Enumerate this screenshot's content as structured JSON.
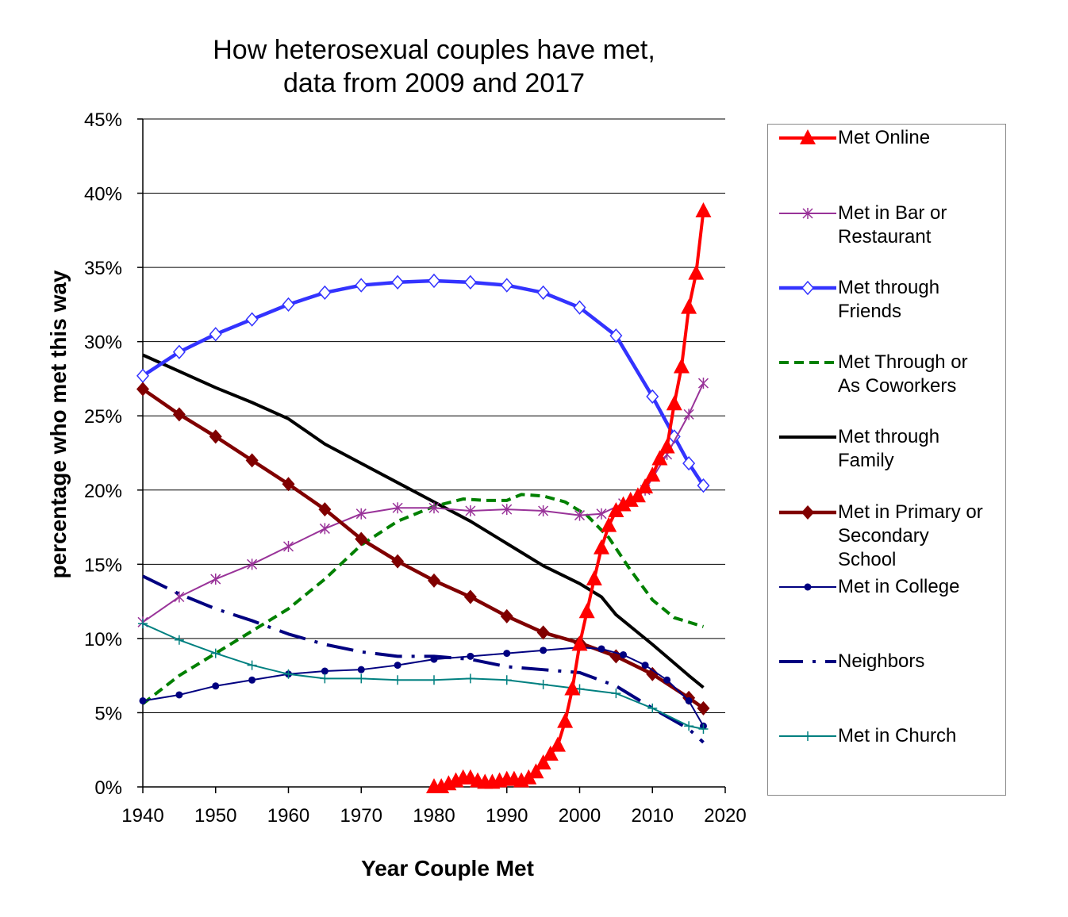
{
  "chart_data": {
    "type": "line",
    "title": [
      "How heterosexual couples have met,",
      "data from 2009 and 2017"
    ],
    "xlabel": "Year Couple Met",
    "ylabel": "percentage who met this way",
    "xlim": [
      1940,
      2020
    ],
    "ylim": [
      0,
      45
    ],
    "x_ticks": [
      "1940",
      "1950",
      "1960",
      "1970",
      "1980",
      "1990",
      "2000",
      "2010",
      "2020"
    ],
    "y_ticks": [
      "0%",
      "5%",
      "10%",
      "15%",
      "20%",
      "25%",
      "30%",
      "35%",
      "40%",
      "45%"
    ],
    "grid": "horizontal",
    "legend": "right",
    "series": [
      {
        "name": "Met Online",
        "color": "#ff0000",
        "marker": "triangle",
        "x": [
          1980,
          1981,
          1982,
          1983,
          1984,
          1985,
          1986,
          1987,
          1988,
          1989,
          1990,
          1991,
          1992,
          1993,
          1994,
          1995,
          1996,
          1997,
          1998,
          1999,
          2000,
          2001,
          2002,
          2003,
          2004,
          2005,
          2006,
          2007,
          2008,
          2009,
          2010,
          2011,
          2012,
          2013,
          2014,
          2015,
          2016,
          2017
        ],
        "y": [
          0.0,
          0.0,
          0.2,
          0.4,
          0.6,
          0.6,
          0.4,
          0.3,
          0.3,
          0.4,
          0.5,
          0.5,
          0.4,
          0.6,
          1.0,
          1.6,
          2.2,
          2.8,
          4.4,
          6.6,
          9.6,
          11.8,
          14.0,
          16.1,
          17.6,
          18.6,
          19.0,
          19.3,
          19.6,
          20.2,
          21.0,
          22.1,
          22.9,
          25.8,
          28.3,
          32.3,
          34.6,
          38.8
        ]
      },
      {
        "name": "Met in Bar or Restaurant",
        "color": "#993399",
        "marker": "star",
        "x": [
          1940,
          1945,
          1950,
          1955,
          1960,
          1965,
          1970,
          1975,
          1980,
          1985,
          1990,
          1995,
          2000,
          2003,
          2006,
          2009,
          2012,
          2015,
          2017
        ],
        "y": [
          11.1,
          12.8,
          14.0,
          15.0,
          16.2,
          17.4,
          18.4,
          18.8,
          18.8,
          18.6,
          18.7,
          18.6,
          18.3,
          18.4,
          19.1,
          20.0,
          22.4,
          25.1,
          27.2
        ]
      },
      {
        "name": "Met through Friends",
        "color": "#3333ff",
        "marker": "diamond-open",
        "x": [
          1940,
          1945,
          1950,
          1955,
          1960,
          1965,
          1970,
          1975,
          1980,
          1985,
          1990,
          1995,
          2000,
          2005,
          2010,
          2013,
          2015,
          2017
        ],
        "y": [
          27.7,
          29.3,
          30.5,
          31.5,
          32.5,
          33.3,
          33.8,
          34.0,
          34.1,
          34.0,
          33.8,
          33.3,
          32.3,
          30.4,
          26.3,
          23.6,
          21.8,
          20.3
        ]
      },
      {
        "name": "Met Through or As Coworkers",
        "color": "#008000",
        "marker": "none",
        "x": [
          1940,
          1945,
          1950,
          1955,
          1960,
          1965,
          1970,
          1975,
          1980,
          1984,
          1987,
          1990,
          1992,
          1995,
          1998,
          2001,
          2004,
          2007,
          2010,
          2013,
          2017
        ],
        "y": [
          5.6,
          7.5,
          9.0,
          10.5,
          12.0,
          14.0,
          16.3,
          17.9,
          18.9,
          19.4,
          19.3,
          19.3,
          19.7,
          19.6,
          19.2,
          18.3,
          16.8,
          14.6,
          12.6,
          11.4,
          10.8
        ]
      },
      {
        "name": "Met through Family",
        "color": "#000000",
        "marker": "none",
        "x": [
          1940,
          1945,
          1950,
          1955,
          1960,
          1965,
          1970,
          1975,
          1980,
          1985,
          1990,
          1995,
          2000,
          2003,
          2005,
          2010,
          2015,
          2017
        ],
        "y": [
          29.1,
          28.0,
          26.9,
          25.9,
          24.8,
          23.1,
          21.8,
          20.5,
          19.2,
          17.9,
          16.4,
          14.9,
          13.7,
          12.8,
          11.6,
          9.6,
          7.5,
          6.7
        ]
      },
      {
        "name": "Met in Primary or Secondary School",
        "color": "#800000",
        "marker": "diamond",
        "x": [
          1940,
          1945,
          1950,
          1955,
          1960,
          1965,
          1970,
          1975,
          1980,
          1985,
          1990,
          1995,
          2000,
          2005,
          2010,
          2015,
          2017
        ],
        "y": [
          26.8,
          25.1,
          23.6,
          22.0,
          20.4,
          18.7,
          16.7,
          15.2,
          13.9,
          12.8,
          11.5,
          10.4,
          9.7,
          8.8,
          7.6,
          6.0,
          5.3
        ]
      },
      {
        "name": "Met in College",
        "color": "#000080",
        "marker": "dot",
        "x": [
          1940,
          1945,
          1950,
          1955,
          1960,
          1965,
          1970,
          1975,
          1980,
          1985,
          1990,
          1995,
          2000,
          2003,
          2006,
          2009,
          2012,
          2015,
          2017
        ],
        "y": [
          5.8,
          6.2,
          6.8,
          7.2,
          7.6,
          7.8,
          7.9,
          8.2,
          8.6,
          8.8,
          9.0,
          9.2,
          9.4,
          9.3,
          8.9,
          8.2,
          7.2,
          5.8,
          4.1
        ]
      },
      {
        "name": "Neighbors",
        "color": "#000080",
        "marker": "dashdot",
        "x": [
          1940,
          1945,
          1950,
          1955,
          1960,
          1965,
          1970,
          1975,
          1980,
          1985,
          1990,
          1995,
          2000,
          2005,
          2010,
          2015,
          2017
        ],
        "y": [
          14.2,
          13.0,
          12.0,
          11.2,
          10.3,
          9.6,
          9.1,
          8.8,
          8.8,
          8.6,
          8.1,
          7.9,
          7.7,
          6.8,
          5.3,
          3.9,
          3.0
        ]
      },
      {
        "name": "Met in Church",
        "color": "#008080",
        "marker": "plus",
        "x": [
          1940,
          1945,
          1950,
          1955,
          1960,
          1965,
          1970,
          1975,
          1980,
          1985,
          1990,
          1995,
          2000,
          2005,
          2010,
          2015,
          2017
        ],
        "y": [
          11.0,
          9.9,
          9.0,
          8.2,
          7.6,
          7.3,
          7.3,
          7.2,
          7.2,
          7.3,
          7.2,
          6.9,
          6.6,
          6.3,
          5.3,
          4.1,
          3.9
        ]
      }
    ]
  },
  "legend_labels": [
    "Met Online",
    "Met in Bar or\nRestaurant",
    "Met through\nFriends",
    "Met Through or\nAs Coworkers",
    "Met through\nFamily",
    "Met in Primary or\nSecondary\nSchool",
    "Met in College",
    "Neighbors",
    "Met in Church"
  ]
}
